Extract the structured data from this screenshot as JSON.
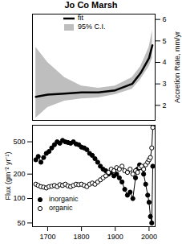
{
  "chart_data": [
    {
      "type": "line",
      "title": "Jo Co Marsh",
      "y_label": "Accretion Rate, mm/yr",
      "x": [
        1665,
        1700,
        1750,
        1800,
        1850,
        1900,
        1950,
        1975,
        2000,
        2010
      ],
      "xlim": [
        1655,
        2018
      ],
      "ylim": [
        1.3,
        6.25
      ],
      "yticks": [
        2,
        3,
        4,
        5,
        6
      ],
      "tick_labels": "y",
      "grid": false,
      "legend": "top",
      "series": [
        {
          "name": "fit",
          "type": "line",
          "color": "#000000",
          "values": [
            2.4,
            2.5,
            2.55,
            2.6,
            2.6,
            2.7,
            3.0,
            3.5,
            4.2,
            4.8
          ]
        },
        {
          "name": "95% C.I.",
          "type": "area",
          "color": "#bebebe",
          "lower": [
            1.4,
            1.9,
            2.2,
            2.3,
            2.35,
            2.5,
            2.75,
            3.2,
            3.8,
            4.2
          ],
          "upper": [
            4.7,
            4.0,
            3.3,
            2.9,
            2.8,
            2.9,
            3.3,
            3.8,
            4.7,
            5.5
          ]
        }
      ]
    },
    {
      "type": "line",
      "y_label": "Flux (gm⁻² yr⁻¹)",
      "x": [
        1665,
        1672,
        1680,
        1688,
        1696,
        1704,
        1712,
        1720,
        1728,
        1736,
        1744,
        1752,
        1760,
        1768,
        1776,
        1784,
        1792,
        1800,
        1808,
        1816,
        1824,
        1832,
        1840,
        1848,
        1856,
        1864,
        1872,
        1880,
        1888,
        1896,
        1904,
        1912,
        1920,
        1928,
        1936,
        1944,
        1952,
        1960,
        1966,
        1972,
        1978,
        1984,
        1990,
        1996,
        2000,
        2004,
        2008,
        2011
      ],
      "xlim": [
        1655,
        2018
      ],
      "xticks": [
        1700,
        1800,
        1900,
        2000
      ],
      "ylim": [
        45,
        800
      ],
      "yticks": [
        50,
        100,
        200,
        500
      ],
      "log": "y",
      "grid": false,
      "legend": "bottom-left",
      "series": [
        {
          "name": "inorganic",
          "color": "#000000",
          "marker": "filled",
          "line_style": "solid",
          "values": [
            300,
            330,
            280,
            320,
            360,
            380,
            420,
            460,
            500,
            480,
            520,
            500,
            490,
            480,
            500,
            470,
            460,
            430,
            420,
            400,
            360,
            340,
            310,
            280,
            250,
            230,
            220,
            200,
            210,
            190,
            200,
            180,
            160,
            130,
            110,
            120,
            100,
            180,
            230,
            260,
            240,
            200,
            150,
            110,
            90,
            60,
            50,
            250
          ]
        },
        {
          "name": "organic",
          "color": "#000000",
          "marker": "open",
          "line_style": "solid",
          "values": [
            150,
            145,
            140,
            138,
            135,
            140,
            142,
            145,
            140,
            148,
            145,
            150,
            143,
            140,
            145,
            150,
            148,
            150,
            145,
            140,
            150,
            155,
            150,
            160,
            170,
            180,
            190,
            210,
            230,
            220,
            240,
            230,
            250,
            220,
            210,
            230,
            200,
            220,
            210,
            240,
            250,
            230,
            260,
            280,
            300,
            320,
            420,
            750
          ]
        }
      ]
    }
  ]
}
